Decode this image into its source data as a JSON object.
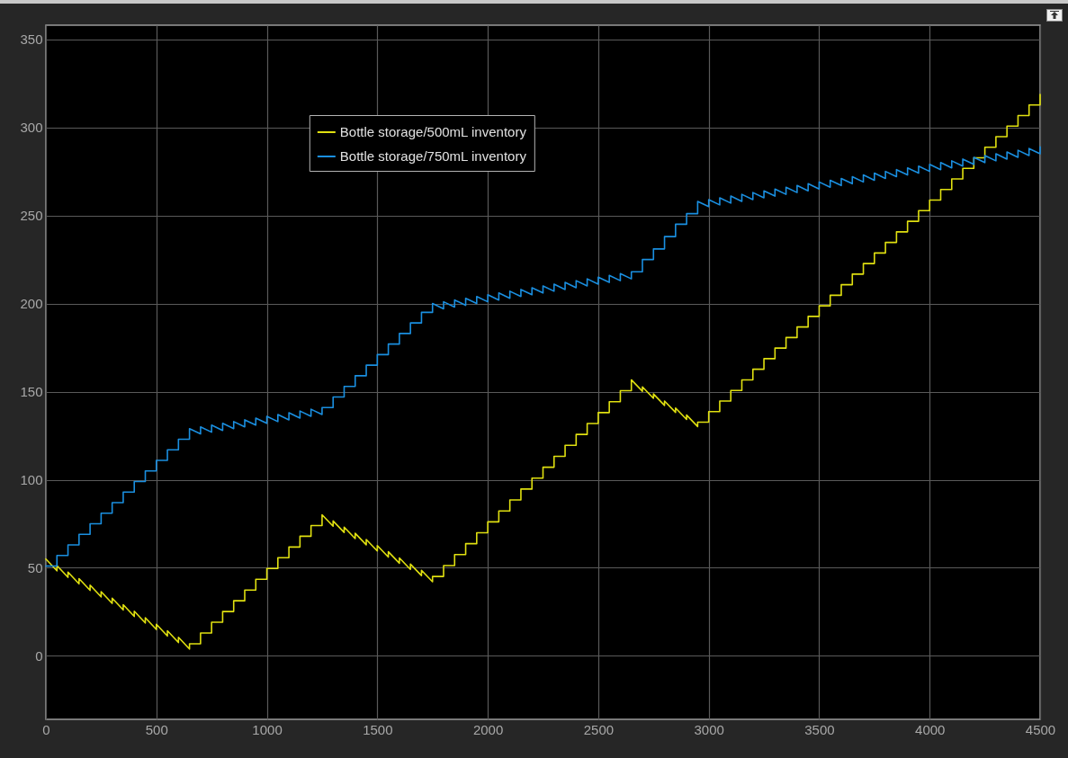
{
  "chart_data": {
    "type": "line",
    "x": [
      0,
      0,
      50,
      50,
      100,
      100,
      150,
      150,
      200,
      200,
      250,
      250,
      300,
      300,
      350,
      350,
      400,
      400,
      450,
      450,
      500,
      500,
      550,
      550,
      600,
      600,
      650,
      650,
      700,
      700,
      750,
      750,
      800,
      800,
      850,
      850,
      900,
      900,
      950,
      950,
      1000,
      1000,
      1050,
      1050,
      1100,
      1100,
      1150,
      1150,
      1200,
      1200,
      1250,
      1250,
      1300,
      1300,
      1350,
      1350,
      1400,
      1400,
      1450,
      1450,
      1500,
      1500,
      1550,
      1550,
      1600,
      1600,
      1650,
      1650,
      1700,
      1700,
      1750,
      1750,
      1800,
      1800,
      1850,
      1850,
      1900,
      1900,
      1950,
      1950,
      2000,
      2000,
      2050,
      2050,
      2100,
      2100,
      2150,
      2150,
      2200,
      2200,
      2250,
      2250,
      2300,
      2300,
      2350,
      2350,
      2400,
      2400,
      2450,
      2450,
      2500,
      2500,
      2550,
      2550,
      2600,
      2600,
      2650,
      2650,
      2700,
      2700,
      2750,
      2750,
      2800,
      2800,
      2850,
      2850,
      2900,
      2900,
      2950,
      2950,
      3000,
      3000,
      3050,
      3050,
      3100,
      3100,
      3150,
      3150,
      3200,
      3200,
      3250,
      3250,
      3300,
      3300,
      3350,
      3350,
      3400,
      3400,
      3450,
      3450,
      3500,
      3500,
      3550,
      3550,
      3600,
      3600,
      3650,
      3650,
      3700,
      3700,
      3750,
      3750,
      3800,
      3800,
      3850,
      3850,
      3900,
      3900,
      3950,
      3950,
      4000,
      4000,
      4050,
      4050,
      4100,
      4100,
      4150,
      4150,
      4200,
      4200,
      4250,
      4250,
      4300,
      4300,
      4350,
      4350,
      4400,
      4400,
      4450,
      4450,
      4500,
      4500
    ],
    "series": [
      {
        "name": "Bottle storage/500mL inventory",
        "color": "#e0e010",
        "values": [
          55,
          55,
          48.3,
          51.3,
          44.6,
          47.6,
          40.9,
          43.9,
          37.2,
          40.2,
          33.5,
          36.5,
          29.8,
          32.8,
          26.1,
          29.1,
          22.4,
          25.4,
          18.7,
          21.7,
          15,
          18,
          11.3,
          14.3,
          7.6,
          10.6,
          3.9,
          6.9,
          6.9,
          13,
          13,
          19.1,
          19.1,
          25.2,
          25.2,
          31.3,
          31.3,
          37.4,
          37.4,
          43.5,
          43.5,
          49.6,
          49.6,
          55.7,
          55.7,
          61.8,
          61.8,
          67.9,
          67.9,
          74,
          74,
          80.1,
          73.6,
          76.6,
          70.1,
          73.1,
          66.6,
          69.6,
          63.1,
          66.1,
          59.6,
          62.6,
          56.1,
          59.1,
          52.6,
          55.6,
          49.1,
          52.1,
          45.6,
          48.6,
          42.1,
          45.1,
          45.1,
          51.3,
          51.3,
          57.5,
          57.5,
          63.7,
          63.7,
          69.9,
          69.9,
          76.1,
          76.1,
          82.3,
          82.3,
          88.5,
          88.5,
          94.7,
          94.7,
          100.9,
          100.9,
          107.1,
          107.1,
          113.3,
          113.3,
          119.5,
          119.5,
          125.7,
          125.7,
          131.9,
          131.9,
          138.1,
          138.1,
          144.3,
          144.3,
          150.5,
          150.5,
          156.7,
          150.2,
          152.7,
          146.2,
          148.7,
          142.2,
          144.7,
          138.2,
          140.7,
          134.2,
          136.7,
          130.2,
          132.7,
          132.7,
          138.7,
          138.7,
          144.7,
          144.7,
          150.7,
          150.7,
          156.7,
          156.7,
          162.7,
          162.7,
          168.7,
          168.7,
          174.7,
          174.7,
          180.7,
          180.7,
          186.7,
          186.7,
          192.7,
          192.7,
          198.7,
          198.7,
          204.7,
          204.7,
          210.7,
          210.7,
          216.7,
          216.7,
          222.7,
          222.7,
          228.7,
          228.7,
          234.7,
          234.7,
          240.7,
          240.7,
          246.7,
          246.7,
          252.7,
          252.7,
          258.7,
          258.7,
          264.7,
          264.7,
          270.7,
          270.7,
          276.7,
          276.7,
          282.7,
          282.7,
          288.7,
          288.7,
          294.7,
          294.7,
          300.7,
          300.7,
          306.7,
          306.7,
          312.7,
          312.7,
          318.7
        ]
      },
      {
        "name": "Bottle storage/750mL inventory",
        "color": "#1a8fe0",
        "values": [
          51,
          51,
          51,
          57,
          57,
          63,
          63,
          69,
          69,
          75,
          75,
          81,
          81,
          87,
          87,
          93,
          93,
          99,
          99,
          105,
          105,
          111,
          111,
          117,
          117,
          123,
          123,
          129,
          126,
          130,
          127,
          131,
          128,
          132,
          129,
          133,
          130,
          134,
          131,
          135,
          132,
          136,
          133,
          137,
          134,
          138,
          135,
          139,
          136,
          140,
          137,
          141,
          141,
          147,
          147,
          153,
          153,
          159,
          159,
          165,
          165,
          171,
          171,
          177,
          177,
          183,
          183,
          189,
          189,
          195,
          195,
          200,
          197,
          201,
          198,
          202,
          199,
          203,
          200,
          204,
          201,
          205,
          202,
          206,
          203,
          207,
          204,
          208,
          205,
          209,
          206,
          210,
          207,
          211,
          208,
          212,
          209,
          213,
          210,
          214,
          211,
          215,
          212,
          216,
          213,
          217,
          214,
          218,
          218,
          225,
          225,
          231,
          231,
          238,
          238,
          245,
          245,
          251,
          251,
          258,
          255,
          259,
          256,
          260,
          257,
          261,
          258,
          262,
          259,
          263,
          260,
          264,
          261,
          265,
          262,
          266,
          263,
          267,
          264,
          268,
          265,
          269,
          266,
          270,
          267,
          271,
          268,
          272,
          269,
          273,
          270,
          274,
          271,
          275,
          272,
          276,
          273,
          277,
          274,
          278,
          275,
          279,
          276,
          280,
          277,
          281,
          278,
          282,
          279,
          283,
          280,
          284,
          281,
          285,
          282,
          286,
          283,
          287,
          284,
          288,
          285,
          289
        ]
      }
    ],
    "xlim": [
      0,
      4500
    ],
    "xticks": [
      0,
      500,
      1000,
      1500,
      2000,
      2500,
      3000,
      3500,
      4000,
      4500
    ],
    "ylim": [
      -36,
      358
    ],
    "yticks": [
      0,
      50,
      100,
      150,
      200,
      250,
      300,
      350
    ],
    "grid": true,
    "legend": "top",
    "marker": "none",
    "line_style": "solid"
  }
}
